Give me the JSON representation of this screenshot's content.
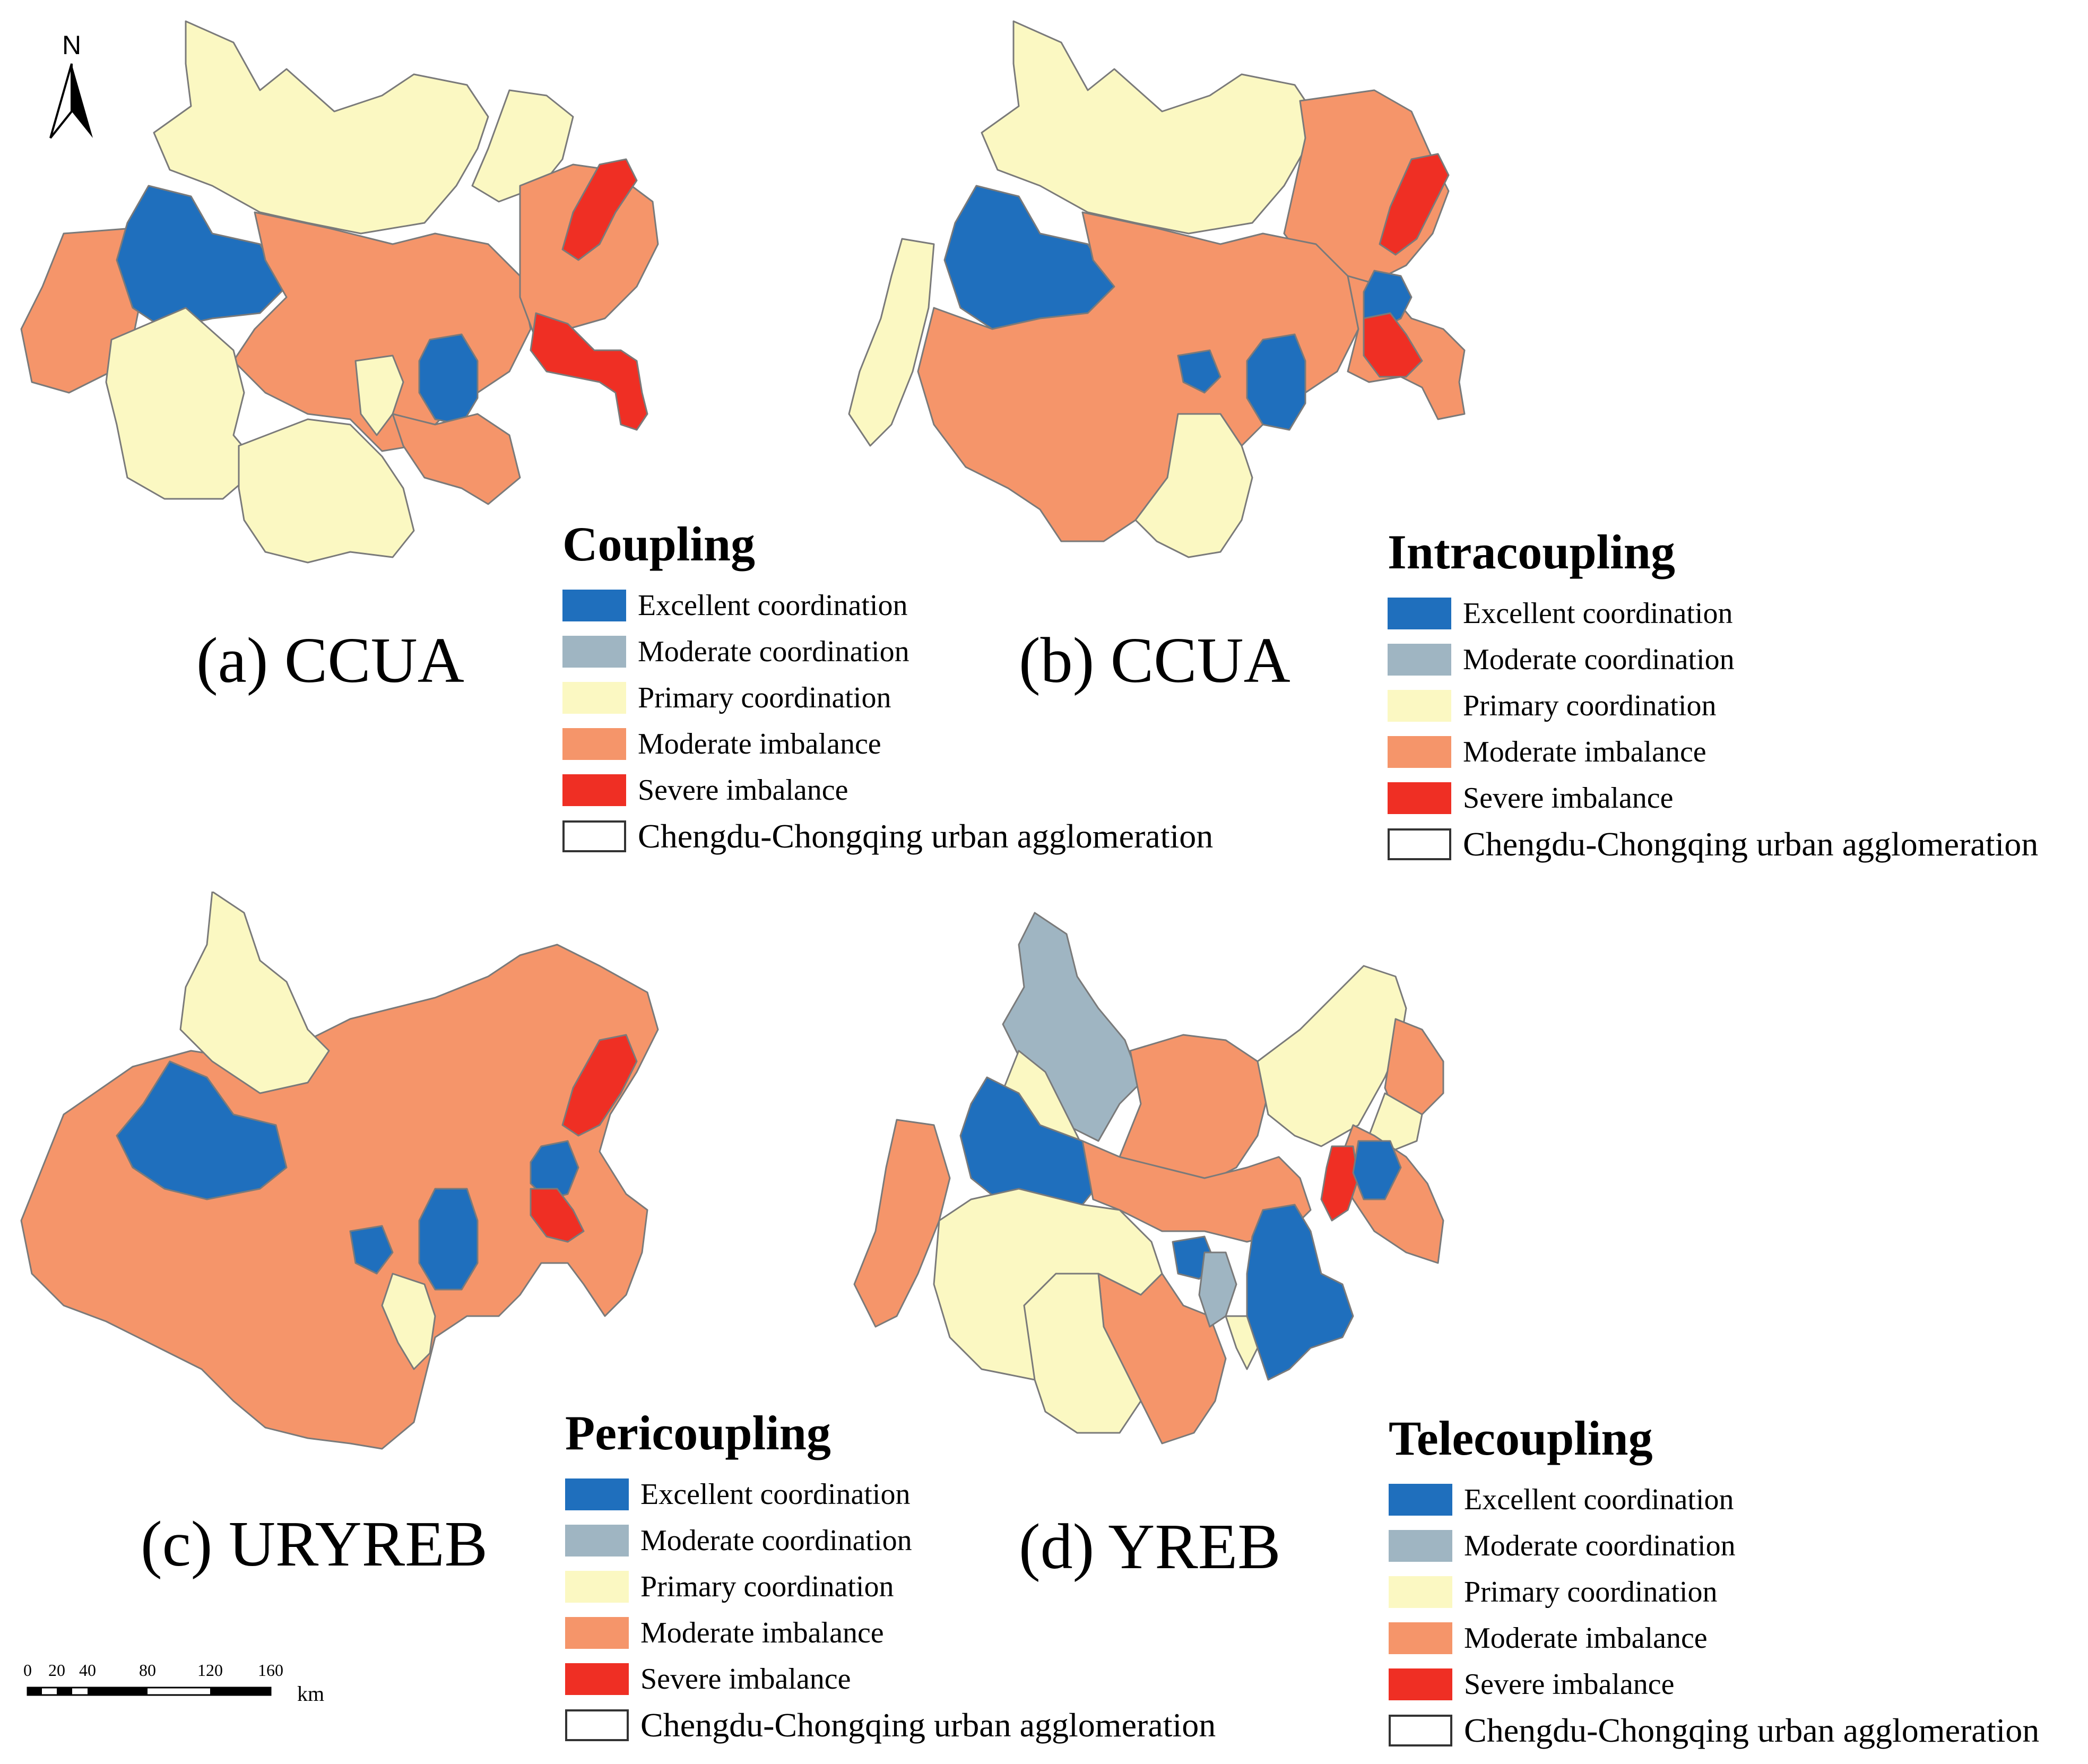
{
  "colors": {
    "excellent": "#1f6fbd",
    "moderate": "#9fb5c2",
    "primary": "#fbf8c2",
    "moderate_imbalance": "#f5956a",
    "severe": "#ef2f24",
    "boundary": "#7a7a7a"
  },
  "north_arrow": {
    "label": "N"
  },
  "scale_bar": {
    "ticks": [
      "0",
      "20",
      "40",
      "80",
      "120",
      "160"
    ],
    "unit": "km"
  },
  "legend_items": [
    {
      "label": "Excellent coordination",
      "color": "#1f6fbd"
    },
    {
      "label": "Moderate coordination",
      "color": "#9fb5c2"
    },
    {
      "label": "Primary coordination",
      "color": "#fbf8c2"
    },
    {
      "label": "Moderate imbalance",
      "color": "#f5956a"
    },
    {
      "label": "Severe imbalance",
      "color": "#ef2f24"
    }
  ],
  "boundary_label": "Chengdu-Chongqing urban agglomeration",
  "panels": [
    {
      "caption": "(a) CCUA",
      "legend_title": "Coupling"
    },
    {
      "caption": "(b) CCUA",
      "legend_title": "Intracoupling"
    },
    {
      "caption": "(c) URYREB",
      "legend_title": "Pericoupling"
    },
    {
      "caption": "(d) YREB",
      "legend_title": "Telecoupling"
    }
  ]
}
